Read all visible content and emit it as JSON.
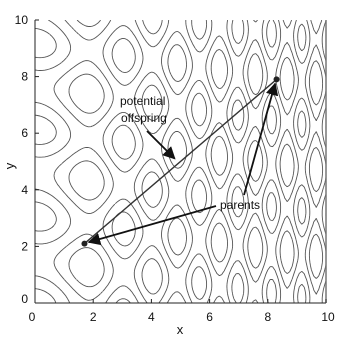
{
  "chart_data": {
    "type": "contour",
    "xlabel": "x",
    "ylabel": "y",
    "xlim": [
      0,
      10
    ],
    "ylim": [
      0,
      10
    ],
    "x_ticks": [
      "0",
      "2",
      "4",
      "6",
      "8",
      "10"
    ],
    "y_ticks": [
      "0",
      "2",
      "4",
      "6",
      "8",
      "10"
    ],
    "contour_style": "dash-dot",
    "points": [
      {
        "id": "parent-a",
        "x": 1.7,
        "y": 2.1
      },
      {
        "id": "parent-b",
        "x": 8.3,
        "y": 7.9
      }
    ],
    "segment": {
      "from": "parent-a",
      "to": "parent-b"
    },
    "annotations": [
      {
        "id": "offspring",
        "lines": [
          "potential",
          "offspring"
        ],
        "arrow_to": {
          "x": 4.8,
          "y": 5.1
        }
      },
      {
        "id": "parents",
        "lines": [
          "parents"
        ],
        "arrows_to": [
          {
            "x": 1.85,
            "y": 2.15
          },
          {
            "x": 8.25,
            "y": 7.75
          }
        ]
      }
    ]
  }
}
